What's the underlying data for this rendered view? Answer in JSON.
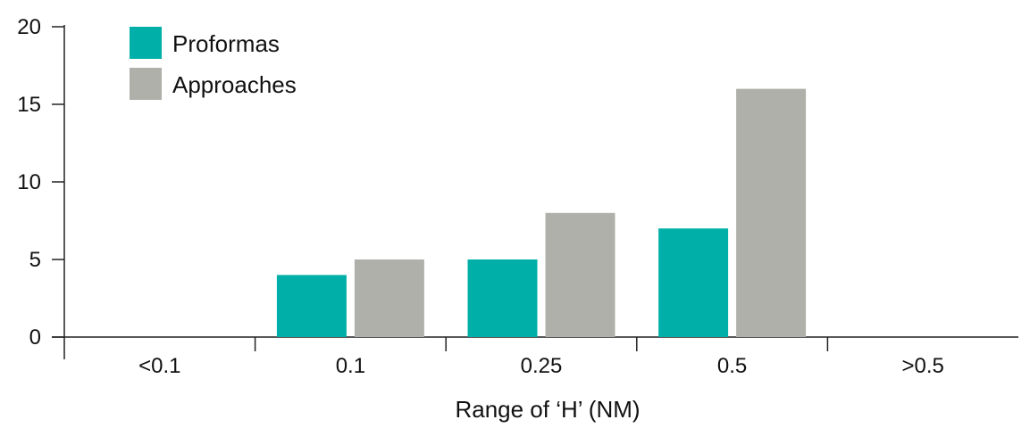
{
  "chart_data": {
    "type": "bar",
    "title": "",
    "xlabel": "Range of ‘H’ (NM)",
    "ylabel": "",
    "categories": [
      "<0.1",
      "0.1",
      "0.25",
      "0.5",
      ">0.5"
    ],
    "series": [
      {
        "name": "Proformas",
        "values": [
          0,
          4,
          5,
          7,
          0
        ],
        "color": "#00b0a8"
      },
      {
        "name": "Approaches",
        "values": [
          0,
          5,
          8,
          16,
          0
        ],
        "color": "#b0b0aa"
      }
    ],
    "ylim": [
      0,
      20
    ],
    "yticks": [
      0,
      5,
      10,
      15,
      20
    ],
    "grid": false,
    "legend_position": "top-left"
  }
}
